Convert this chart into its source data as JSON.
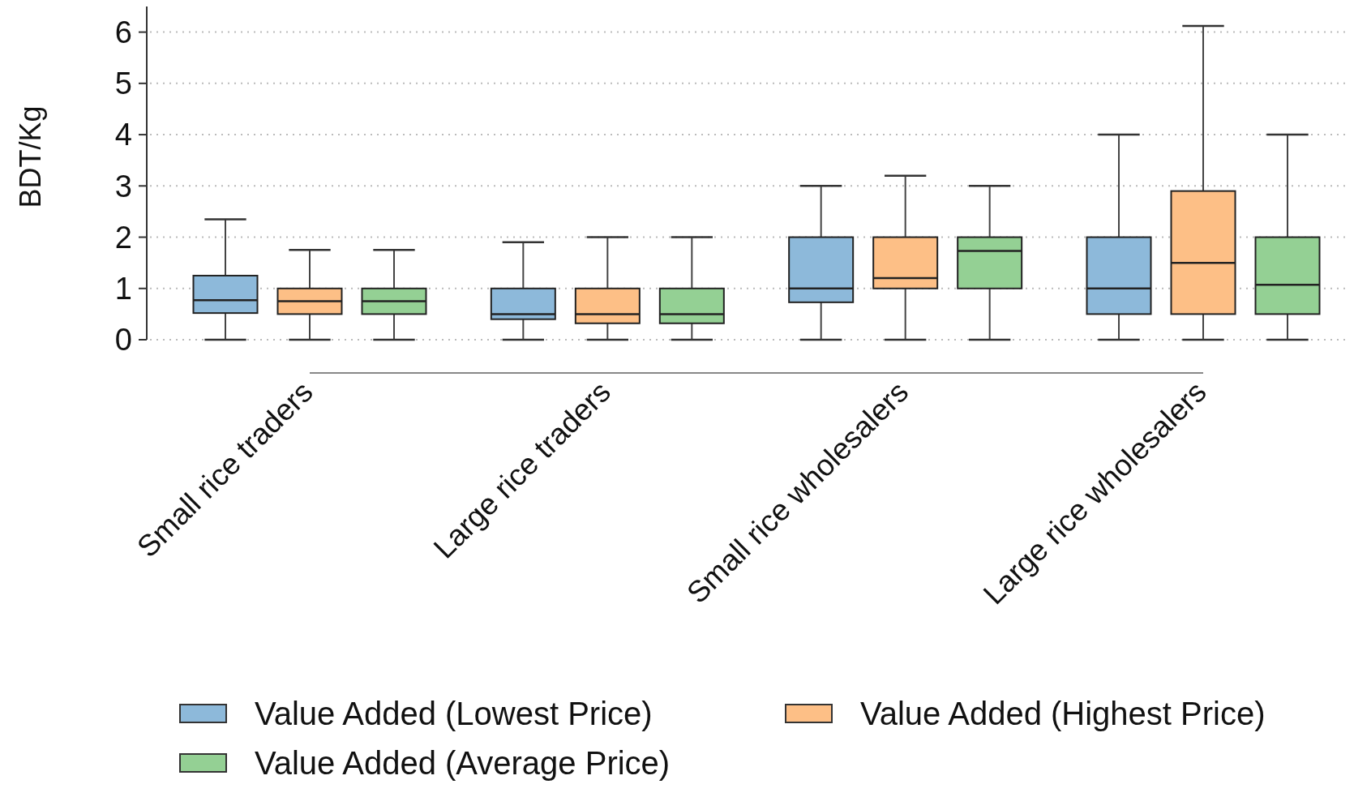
{
  "chart_data": {
    "type": "box",
    "ylabel": "BDT/Kg",
    "categories": [
      "Small rice traders",
      "Large rice traders",
      "Small rice wholesalers",
      "Large rice wholesalers"
    ],
    "series": [
      {
        "name": "Value Added (Lowest Price)",
        "color": "#8db9da",
        "boxes": [
          {
            "low": 0,
            "q1": 0.52,
            "median": 0.77,
            "q3": 1.25,
            "high": 2.35
          },
          {
            "low": 0,
            "q1": 0.4,
            "median": 0.5,
            "q3": 1,
            "high": 1.9
          },
          {
            "low": 0,
            "q1": 0.73,
            "median": 1,
            "q3": 2,
            "high": 3
          },
          {
            "low": 0,
            "q1": 0.5,
            "median": 1,
            "q3": 2,
            "high": 4
          }
        ]
      },
      {
        "name": "Value Added (Highest Price)",
        "color": "#fdbf86",
        "boxes": [
          {
            "low": 0,
            "q1": 0.5,
            "median": 0.75,
            "q3": 1,
            "high": 1.75
          },
          {
            "low": 0,
            "q1": 0.32,
            "median": 0.5,
            "q3": 1,
            "high": 2
          },
          {
            "low": 0,
            "q1": 1,
            "median": 1.2,
            "q3": 2,
            "high": 3.2
          },
          {
            "low": 0,
            "q1": 0.5,
            "median": 1.5,
            "q3": 2.9,
            "high": 6.12
          }
        ]
      },
      {
        "name": "Value Added (Average Price)",
        "color": "#94d094",
        "boxes": [
          {
            "low": 0,
            "q1": 0.5,
            "median": 0.75,
            "q3": 1,
            "high": 1.75
          },
          {
            "low": 0,
            "q1": 0.32,
            "median": 0.5,
            "q3": 1,
            "high": 2
          },
          {
            "low": 0,
            "q1": 1,
            "median": 1.73,
            "q3": 2,
            "high": 3
          },
          {
            "low": 0,
            "q1": 0.5,
            "median": 1.07,
            "q3": 2,
            "high": 4
          }
        ]
      }
    ],
    "ylim": [
      0,
      6.5
    ],
    "yticks": [
      0,
      1,
      2,
      3,
      4,
      5,
      6
    ],
    "grid": "y",
    "legend": "bottom"
  }
}
